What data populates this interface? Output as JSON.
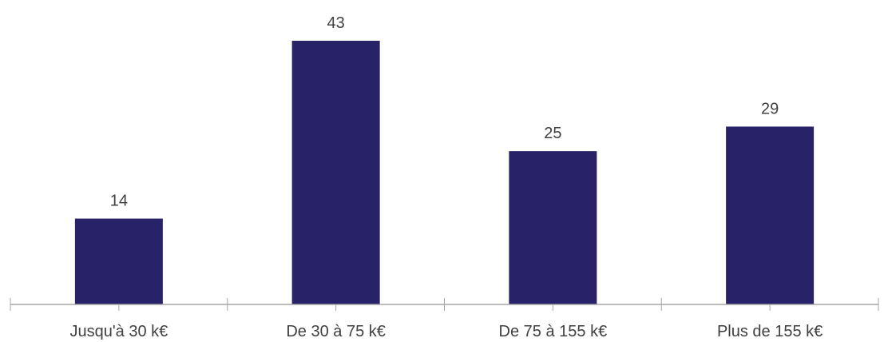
{
  "chart_data": {
    "type": "bar",
    "categories": [
      "Jusqu'à 30 k€",
      "De 30 à 75 k€",
      "De 75 à 155 k€",
      "Plus de 155 k€"
    ],
    "values": [
      14,
      43,
      25,
      29
    ],
    "data_labels": [
      "14",
      "43",
      "25",
      "29"
    ],
    "ylim": [
      0,
      43
    ],
    "grid": false,
    "legend": "none",
    "bar_color": "#282269",
    "axis_color": "#a6a6a6",
    "text_color": "#404040"
  }
}
